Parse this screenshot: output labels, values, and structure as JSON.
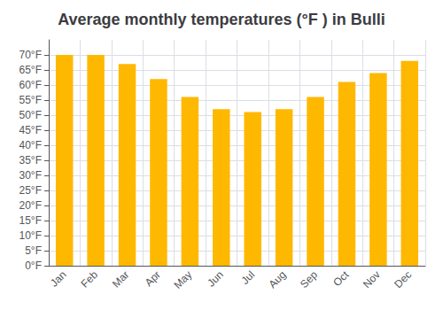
{
  "chart_data": {
    "type": "bar",
    "title": "Average monthly temperatures (°F ) in Bulli",
    "categories": [
      "Jan",
      "Feb",
      "Mar",
      "Apr",
      "May",
      "Jun",
      "Jul",
      "Aug",
      "Sep",
      "Oct",
      "Nov",
      "Dec"
    ],
    "values": [
      70,
      70,
      67,
      62,
      56,
      52,
      51,
      52,
      56,
      61,
      64,
      68
    ],
    "color": "#FFB800",
    "ylim": [
      0,
      75
    ],
    "yticks": [
      {
        "value": 0,
        "label": "0°F"
      },
      {
        "value": 5,
        "label": "5°F"
      },
      {
        "value": 10,
        "label": "10°F"
      },
      {
        "value": 15,
        "label": "15°F"
      },
      {
        "value": 20,
        "label": "20°F"
      },
      {
        "value": 25,
        "label": "25°F"
      },
      {
        "value": 30,
        "label": "30°F"
      },
      {
        "value": 35,
        "label": "35°F"
      },
      {
        "value": 40,
        "label": "40°F"
      },
      {
        "value": 45,
        "label": "45°F"
      },
      {
        "value": 50,
        "label": "50°F"
      },
      {
        "value": 55,
        "label": "55°F"
      },
      {
        "value": 60,
        "label": "60°F"
      },
      {
        "value": 65,
        "label": "65°F"
      },
      {
        "value": 70,
        "label": "70°F"
      }
    ],
    "grid": true
  }
}
